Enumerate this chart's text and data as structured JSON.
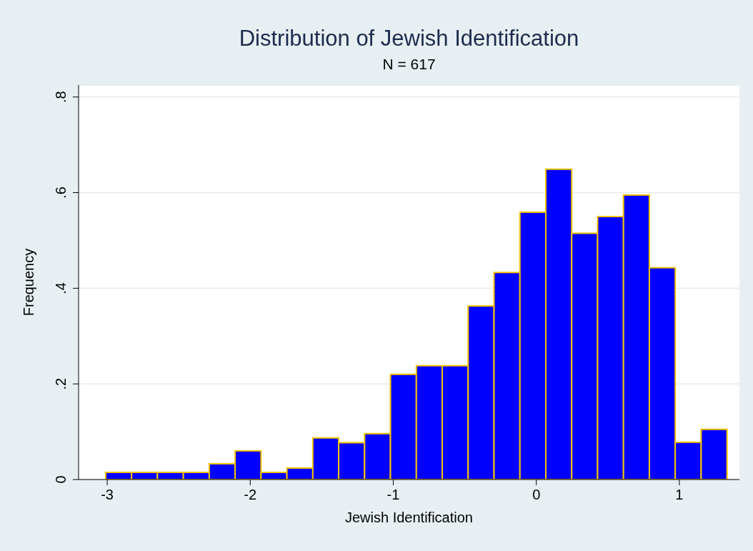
{
  "chart_data": {
    "type": "histogram",
    "title": "Distribution of Jewish Identification",
    "subtitle": "N = 617",
    "xlabel": "Jewish Identification",
    "ylabel": "Frequency",
    "bins": [
      -3.01,
      -2.829,
      -2.648,
      -2.467,
      -2.286,
      -2.105,
      -1.924,
      -1.743,
      -1.562,
      -1.381,
      -1.2,
      -1.019,
      -0.838,
      -0.657,
      -0.476,
      -0.295,
      -0.114,
      0.067,
      0.248,
      0.429,
      0.61,
      0.791,
      0.972,
      1.153,
      1.334
    ],
    "values": [
      0.015,
      0.015,
      0.015,
      0.015,
      0.033,
      0.06,
      0.015,
      0.024,
      0.087,
      0.077,
      0.096,
      0.22,
      0.238,
      0.238,
      0.363,
      0.433,
      0.559,
      0.649,
      0.515,
      0.55,
      0.595,
      0.443,
      0.078,
      0.105
    ],
    "color": "#0000ff",
    "xlim": [
      -3.2,
      1.42
    ],
    "xticks": [
      -3,
      -2,
      -1,
      0,
      1
    ],
    "ylim": [
      0,
      0.825
    ],
    "yticks": [
      0,
      {
        "value": 0.2,
        "label": ".2"
      },
      {
        "value": 0.4,
        "label": ".4"
      },
      {
        "value": 0.6,
        "label": ".6"
      },
      {
        "value": 0.8,
        "label": ".8"
      }
    ],
    "grid": "y"
  }
}
